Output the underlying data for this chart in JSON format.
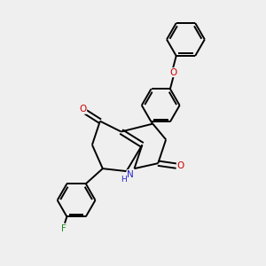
{
  "background_color": "#efefef",
  "bond_color": "#000000",
  "text_color_red": "#cc0000",
  "text_color_blue": "#2222cc",
  "text_color_green": "#228B22",
  "lw": 1.4,
  "fig_size": [
    3.0,
    3.0
  ],
  "dpi": 100,
  "xlim": [
    0,
    10
  ],
  "ylim": [
    0,
    10
  ]
}
